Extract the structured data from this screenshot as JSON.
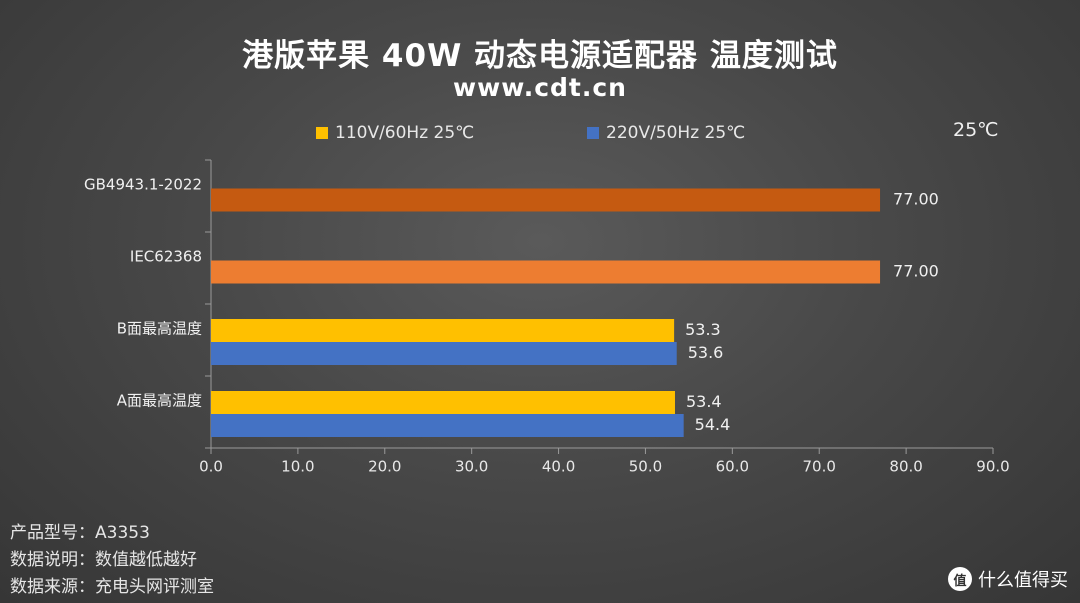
{
  "header": {
    "title": "港版苹果 40W 动态电源适配器 温度测试",
    "subtitle": "www.cdt.cn",
    "unit": "25℃"
  },
  "colors": {
    "yellow": "#FFC000",
    "blue": "#4472C4",
    "dark_orange": "#C55A11",
    "orange": "#ED7D31"
  },
  "chart_data": {
    "type": "bar",
    "orientation": "horizontal",
    "categories": [
      "GB4943.1-2022",
      "IEC62368",
      "B面最高温度",
      "A面最高温度"
    ],
    "series": [
      {
        "name": "110V/60Hz 25℃",
        "color": "#FFC000",
        "values": [
          null,
          null,
          53.3,
          53.4
        ]
      },
      {
        "name": "220V/50Hz 25℃",
        "color": "#4472C4",
        "values": [
          null,
          null,
          53.6,
          54.4
        ]
      }
    ],
    "limits": [
      {
        "category": "GB4943.1-2022",
        "value": 77.0,
        "label": "77.00",
        "color": "#C55A11"
      },
      {
        "category": "IEC62368",
        "value": 77.0,
        "label": "77.00",
        "color": "#ED7D31"
      }
    ],
    "data_labels": {
      "B面最高温度": [
        "53.3",
        "53.6"
      ],
      "A面最高温度": [
        "53.4",
        "54.4"
      ]
    },
    "xlim": [
      0,
      90
    ],
    "xticks": [
      "0.0",
      "10.0",
      "20.0",
      "30.0",
      "40.0",
      "50.0",
      "60.0",
      "70.0",
      "80.0",
      "90.0"
    ],
    "grid": false,
    "legend_position": "top"
  },
  "footer": {
    "model": "产品型号：A3353",
    "note": "数据说明：数值越低越好",
    "source": "数据来源：充电头网评测室"
  },
  "watermark": {
    "badge": "值",
    "text": "什么值得买"
  }
}
